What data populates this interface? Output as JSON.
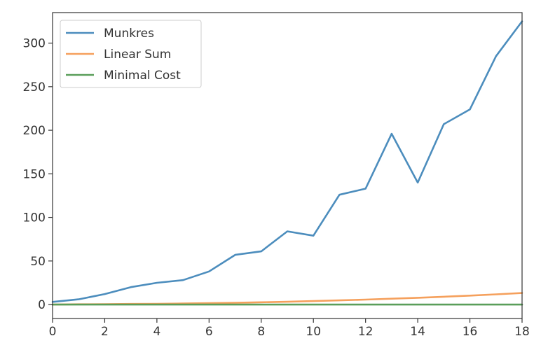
{
  "chart_data": {
    "type": "line",
    "title": "",
    "xlabel": "",
    "ylabel": "",
    "x": [
      0,
      1,
      2,
      3,
      4,
      5,
      6,
      7,
      8,
      9,
      10,
      11,
      12,
      13,
      14,
      15,
      16,
      17,
      18
    ],
    "xlim": [
      0,
      18
    ],
    "ylim": [
      -16,
      335
    ],
    "xticks": [
      0,
      2,
      4,
      6,
      8,
      10,
      12,
      14,
      16,
      18
    ],
    "yticks": [
      0,
      50,
      100,
      150,
      200,
      250,
      300
    ],
    "grid": false,
    "legend_position": "top-left",
    "series": [
      {
        "name": "Munkres",
        "color": "#4c8dbd",
        "values": [
          3,
          6,
          12,
          20,
          25,
          28,
          38,
          57,
          61,
          84,
          79,
          126,
          133,
          196,
          140,
          207,
          224,
          285,
          325
        ]
      },
      {
        "name": "Linear Sum",
        "color": "#f5a05c",
        "values": [
          0,
          0.3,
          0.5,
          0.7,
          0.9,
          1.2,
          1.6,
          2.0,
          2.6,
          3.2,
          4.0,
          4.8,
          5.7,
          6.7,
          7.8,
          9.0,
          10.3,
          11.7,
          13.2
        ]
      },
      {
        "name": "Minimal Cost",
        "color": "#5a9e5a",
        "values": [
          0,
          0,
          0,
          0,
          0,
          0,
          0,
          0,
          0,
          0,
          0,
          0,
          0,
          0,
          0,
          0,
          0,
          0,
          0
        ]
      }
    ]
  }
}
